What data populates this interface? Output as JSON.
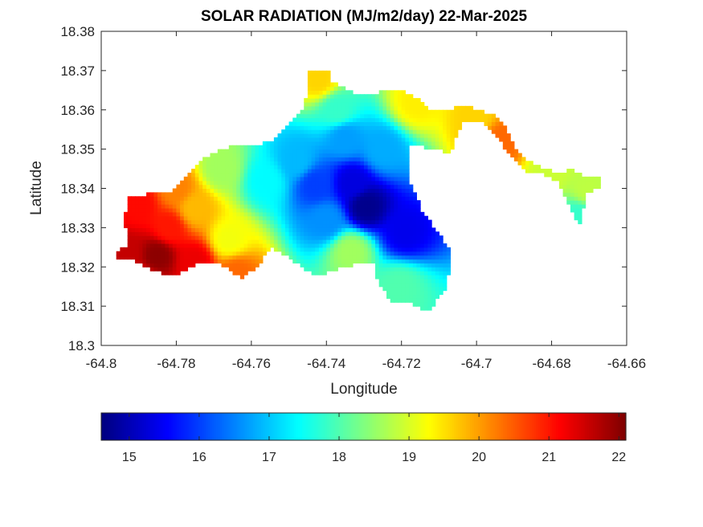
{
  "chart_data": {
    "type": "heatmap",
    "title": "SOLAR RADIATION (MJ/m2/day) 22-Mar-2025",
    "xlabel": "Longitude",
    "ylabel": "Latitude",
    "xlim": [
      -64.8,
      -64.66
    ],
    "ylim": [
      18.3,
      18.38
    ],
    "xticks": [
      -64.8,
      -64.78,
      -64.76,
      -64.74,
      -64.72,
      -64.7,
      -64.68,
      -64.66
    ],
    "yticks": [
      18.3,
      18.31,
      18.32,
      18.33,
      18.34,
      18.35,
      18.36,
      18.37,
      18.38
    ],
    "xtick_labels": [
      "-64.8",
      "-64.78",
      "-64.76",
      "-64.74",
      "-64.72",
      "-64.7",
      "-64.68",
      "-64.66"
    ],
    "ytick_labels": [
      "18.3",
      "18.31",
      "18.32",
      "18.33",
      "18.34",
      "18.35",
      "18.36",
      "18.37",
      "18.38"
    ],
    "colormap": "jet",
    "colorbar": {
      "orientation": "horizontal",
      "location": "bottom",
      "clim": [
        14.6,
        22.1
      ],
      "ticks": [
        15,
        16,
        17,
        18,
        19,
        20,
        21,
        22
      ],
      "tick_labels": [
        "15",
        "16",
        "17",
        "18",
        "19",
        "20",
        "21",
        "22"
      ]
    },
    "grid": false,
    "island_outline": [
      [
        -64.793,
        18.3355
      ],
      [
        -64.793,
        18.3375
      ],
      [
        -64.788,
        18.3385
      ],
      [
        -64.781,
        18.3395
      ],
      [
        -64.777,
        18.343
      ],
      [
        -64.772,
        18.348
      ],
      [
        -64.7665,
        18.3505
      ],
      [
        -64.7605,
        18.351
      ],
      [
        -64.7545,
        18.352
      ],
      [
        -64.7505,
        18.356
      ],
      [
        -64.7465,
        18.36
      ],
      [
        -64.7445,
        18.3655
      ],
      [
        -64.7445,
        18.3705
      ],
      [
        -64.7395,
        18.3705
      ],
      [
        -64.7385,
        18.3675
      ],
      [
        -64.7325,
        18.364
      ],
      [
        -64.7265,
        18.3645
      ],
      [
        -64.7205,
        18.365
      ],
      [
        -64.7155,
        18.363
      ],
      [
        -64.7125,
        18.36
      ],
      [
        -64.7085,
        18.36
      ],
      [
        -64.7025,
        18.361
      ],
      [
        -64.6995,
        18.36
      ],
      [
        -64.6955,
        18.359
      ],
      [
        -64.6925,
        18.356
      ],
      [
        -64.6895,
        18.35
      ],
      [
        -64.6865,
        18.347
      ],
      [
        -64.6815,
        18.345
      ],
      [
        -64.6775,
        18.344
      ],
      [
        -64.6745,
        18.345
      ],
      [
        -64.6715,
        18.343
      ],
      [
        -64.6665,
        18.3425
      ],
      [
        -64.6665,
        18.34
      ],
      [
        -64.6705,
        18.339
      ],
      [
        -64.6725,
        18.3305
      ],
      [
        -64.6745,
        18.3345
      ],
      [
        -64.6785,
        18.342
      ],
      [
        -64.6825,
        18.344
      ],
      [
        -64.6865,
        18.3445
      ],
      [
        -64.6905,
        18.348
      ],
      [
        -64.6945,
        18.353
      ],
      [
        -64.6985,
        18.3575
      ],
      [
        -64.7035,
        18.3575
      ],
      [
        -64.7055,
        18.353
      ],
      [
        -64.7085,
        18.345
      ],
      [
        -64.7115,
        18.342
      ],
      [
        -64.7145,
        18.342
      ],
      [
        -64.7155,
        18.3455
      ],
      [
        -64.7175,
        18.348
      ],
      [
        -64.7175,
        18.341
      ],
      [
        -64.7145,
        18.3345
      ],
      [
        -64.7105,
        18.329
      ],
      [
        -64.7075,
        18.325
      ],
      [
        -64.7065,
        18.321
      ],
      [
        -64.7085,
        18.314
      ],
      [
        -64.7125,
        18.309
      ],
      [
        -64.7145,
        18.3095
      ],
      [
        -64.7185,
        18.3115
      ],
      [
        -64.7225,
        18.3105
      ],
      [
        -64.7245,
        18.314
      ],
      [
        -64.7265,
        18.317
      ],
      [
        -64.7275,
        18.321
      ],
      [
        -64.7325,
        18.3205
      ],
      [
        -64.7385,
        18.319
      ],
      [
        -64.7425,
        18.3175
      ],
      [
        -64.7465,
        18.32
      ],
      [
        -64.7505,
        18.323
      ],
      [
        -64.7545,
        18.325
      ],
      [
        -64.7585,
        18.32
      ],
      [
        -64.7625,
        18.317
      ],
      [
        -64.7665,
        18.32
      ],
      [
        -64.7705,
        18.3215
      ],
      [
        -64.7745,
        18.321
      ],
      [
        -64.7785,
        18.3185
      ],
      [
        -64.7825,
        18.318
      ],
      [
        -64.7865,
        18.3195
      ],
      [
        -64.7905,
        18.3215
      ],
      [
        -64.7955,
        18.322
      ],
      [
        -64.7955,
        18.324
      ],
      [
        -64.7925,
        18.326
      ],
      [
        -64.7935,
        18.33
      ],
      [
        -64.7935,
        18.334
      ]
    ],
    "gap_outline": [
      [
        -64.7185,
        18.351
      ],
      [
        -64.7095,
        18.35
      ],
      [
        -64.7035,
        18.346
      ],
      [
        -64.6995,
        18.343
      ],
      [
        -64.6955,
        18.339
      ],
      [
        -64.6955,
        18.334
      ],
      [
        -64.7005,
        18.33
      ],
      [
        -64.7065,
        18.326
      ],
      [
        -64.7105,
        18.33
      ],
      [
        -64.7145,
        18.335
      ],
      [
        -64.7175,
        18.342
      ]
    ],
    "field_anchors": [
      {
        "lon": -64.7295,
        "lat": 18.3355,
        "value": 14.7
      },
      {
        "lon": -64.733,
        "lat": 18.3415,
        "value": 15.3
      },
      {
        "lon": -64.719,
        "lat": 18.329,
        "value": 15.4
      },
      {
        "lon": -64.743,
        "lat": 18.341,
        "value": 16.0
      },
      {
        "lon": -64.74,
        "lat": 18.332,
        "value": 16.6
      },
      {
        "lon": -64.725,
        "lat": 18.35,
        "value": 16.8
      },
      {
        "lon": -64.735,
        "lat": 18.353,
        "value": 16.7
      },
      {
        "lon": -64.748,
        "lat": 18.347,
        "value": 16.9
      },
      {
        "lon": -64.756,
        "lat": 18.342,
        "value": 17.4
      },
      {
        "lon": -64.737,
        "lat": 18.36,
        "value": 17.8
      },
      {
        "lon": -64.7205,
        "lat": 18.315,
        "value": 18.0
      },
      {
        "lon": -64.7335,
        "lat": 18.324,
        "value": 18.6
      },
      {
        "lon": -64.742,
        "lat": 18.368,
        "value": 19.6
      },
      {
        "lon": -64.716,
        "lat": 18.362,
        "value": 19.4
      },
      {
        "lon": -64.7,
        "lat": 18.358,
        "value": 19.6
      },
      {
        "lon": -64.694,
        "lat": 18.352,
        "value": 20.4
      },
      {
        "lon": -64.68,
        "lat": 18.344,
        "value": 18.9
      },
      {
        "lon": -64.6705,
        "lat": 18.34,
        "value": 18.8
      },
      {
        "lon": -64.673,
        "lat": 18.333,
        "value": 17.8
      },
      {
        "lon": -64.768,
        "lat": 18.345,
        "value": 18.6
      },
      {
        "lon": -64.766,
        "lat": 18.327,
        "value": 19.2
      },
      {
        "lon": -64.764,
        "lat": 18.3185,
        "value": 20.4
      },
      {
        "lon": -64.775,
        "lat": 18.335,
        "value": 19.8
      },
      {
        "lon": -64.78,
        "lat": 18.34,
        "value": 20.2
      },
      {
        "lon": -64.782,
        "lat": 18.33,
        "value": 21.0
      },
      {
        "lon": -64.79,
        "lat": 18.336,
        "value": 21.1
      },
      {
        "lon": -64.775,
        "lat": 18.3215,
        "value": 21.3
      },
      {
        "lon": -64.785,
        "lat": 18.323,
        "value": 22.0
      },
      {
        "lon": -64.793,
        "lat": 18.3235,
        "value": 21.6
      },
      {
        "lon": -64.789,
        "lat": 18.3165,
        "value": 21.3
      }
    ]
  }
}
